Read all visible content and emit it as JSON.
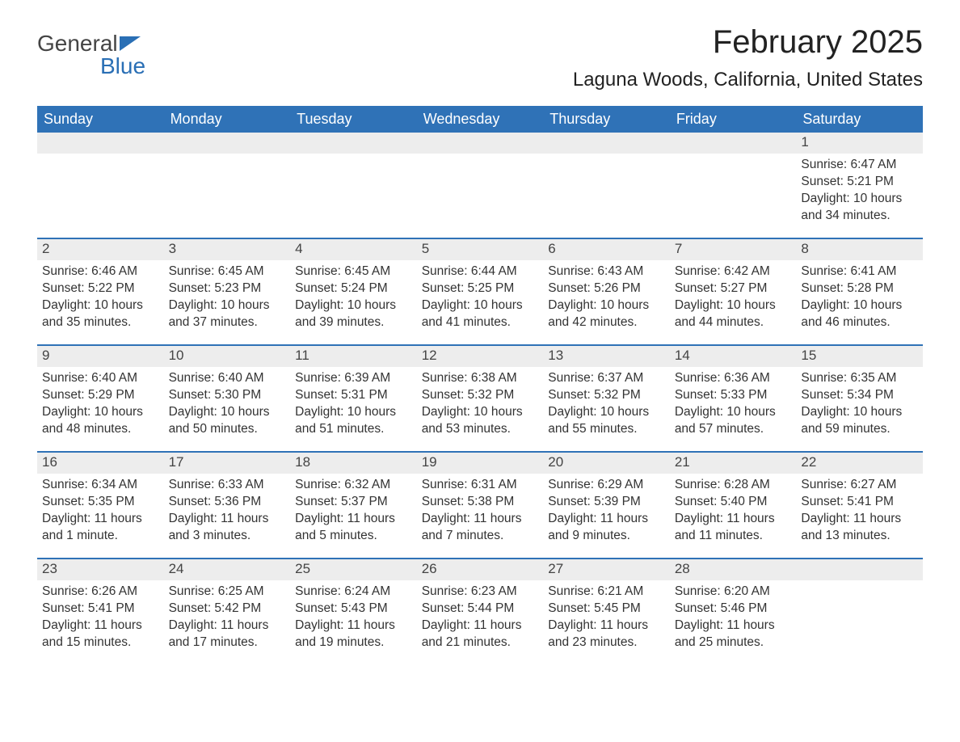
{
  "logo": {
    "word1": "General",
    "word2": "Blue"
  },
  "title": "February 2025",
  "location": "Laguna Woods, California, United States",
  "colors": {
    "header_bg": "#2f72b7",
    "header_text": "#ffffff",
    "daynum_bg": "#ededed",
    "row_border": "#2f72b7",
    "logo_accent": "#2a6fb5"
  },
  "weekday_labels": [
    "Sunday",
    "Monday",
    "Tuesday",
    "Wednesday",
    "Thursday",
    "Friday",
    "Saturday"
  ],
  "weeks": [
    [
      null,
      null,
      null,
      null,
      null,
      null,
      {
        "day": "1",
        "sunrise": "Sunrise: 6:47 AM",
        "sunset": "Sunset: 5:21 PM",
        "daylight": "Daylight: 10 hours and 34 minutes."
      }
    ],
    [
      {
        "day": "2",
        "sunrise": "Sunrise: 6:46 AM",
        "sunset": "Sunset: 5:22 PM",
        "daylight": "Daylight: 10 hours and 35 minutes."
      },
      {
        "day": "3",
        "sunrise": "Sunrise: 6:45 AM",
        "sunset": "Sunset: 5:23 PM",
        "daylight": "Daylight: 10 hours and 37 minutes."
      },
      {
        "day": "4",
        "sunrise": "Sunrise: 6:45 AM",
        "sunset": "Sunset: 5:24 PM",
        "daylight": "Daylight: 10 hours and 39 minutes."
      },
      {
        "day": "5",
        "sunrise": "Sunrise: 6:44 AM",
        "sunset": "Sunset: 5:25 PM",
        "daylight": "Daylight: 10 hours and 41 minutes."
      },
      {
        "day": "6",
        "sunrise": "Sunrise: 6:43 AM",
        "sunset": "Sunset: 5:26 PM",
        "daylight": "Daylight: 10 hours and 42 minutes."
      },
      {
        "day": "7",
        "sunrise": "Sunrise: 6:42 AM",
        "sunset": "Sunset: 5:27 PM",
        "daylight": "Daylight: 10 hours and 44 minutes."
      },
      {
        "day": "8",
        "sunrise": "Sunrise: 6:41 AM",
        "sunset": "Sunset: 5:28 PM",
        "daylight": "Daylight: 10 hours and 46 minutes."
      }
    ],
    [
      {
        "day": "9",
        "sunrise": "Sunrise: 6:40 AM",
        "sunset": "Sunset: 5:29 PM",
        "daylight": "Daylight: 10 hours and 48 minutes."
      },
      {
        "day": "10",
        "sunrise": "Sunrise: 6:40 AM",
        "sunset": "Sunset: 5:30 PM",
        "daylight": "Daylight: 10 hours and 50 minutes."
      },
      {
        "day": "11",
        "sunrise": "Sunrise: 6:39 AM",
        "sunset": "Sunset: 5:31 PM",
        "daylight": "Daylight: 10 hours and 51 minutes."
      },
      {
        "day": "12",
        "sunrise": "Sunrise: 6:38 AM",
        "sunset": "Sunset: 5:32 PM",
        "daylight": "Daylight: 10 hours and 53 minutes."
      },
      {
        "day": "13",
        "sunrise": "Sunrise: 6:37 AM",
        "sunset": "Sunset: 5:32 PM",
        "daylight": "Daylight: 10 hours and 55 minutes."
      },
      {
        "day": "14",
        "sunrise": "Sunrise: 6:36 AM",
        "sunset": "Sunset: 5:33 PM",
        "daylight": "Daylight: 10 hours and 57 minutes."
      },
      {
        "day": "15",
        "sunrise": "Sunrise: 6:35 AM",
        "sunset": "Sunset: 5:34 PM",
        "daylight": "Daylight: 10 hours and 59 minutes."
      }
    ],
    [
      {
        "day": "16",
        "sunrise": "Sunrise: 6:34 AM",
        "sunset": "Sunset: 5:35 PM",
        "daylight": "Daylight: 11 hours and 1 minute."
      },
      {
        "day": "17",
        "sunrise": "Sunrise: 6:33 AM",
        "sunset": "Sunset: 5:36 PM",
        "daylight": "Daylight: 11 hours and 3 minutes."
      },
      {
        "day": "18",
        "sunrise": "Sunrise: 6:32 AM",
        "sunset": "Sunset: 5:37 PM",
        "daylight": "Daylight: 11 hours and 5 minutes."
      },
      {
        "day": "19",
        "sunrise": "Sunrise: 6:31 AM",
        "sunset": "Sunset: 5:38 PM",
        "daylight": "Daylight: 11 hours and 7 minutes."
      },
      {
        "day": "20",
        "sunrise": "Sunrise: 6:29 AM",
        "sunset": "Sunset: 5:39 PM",
        "daylight": "Daylight: 11 hours and 9 minutes."
      },
      {
        "day": "21",
        "sunrise": "Sunrise: 6:28 AM",
        "sunset": "Sunset: 5:40 PM",
        "daylight": "Daylight: 11 hours and 11 minutes."
      },
      {
        "day": "22",
        "sunrise": "Sunrise: 6:27 AM",
        "sunset": "Sunset: 5:41 PM",
        "daylight": "Daylight: 11 hours and 13 minutes."
      }
    ],
    [
      {
        "day": "23",
        "sunrise": "Sunrise: 6:26 AM",
        "sunset": "Sunset: 5:41 PM",
        "daylight": "Daylight: 11 hours and 15 minutes."
      },
      {
        "day": "24",
        "sunrise": "Sunrise: 6:25 AM",
        "sunset": "Sunset: 5:42 PM",
        "daylight": "Daylight: 11 hours and 17 minutes."
      },
      {
        "day": "25",
        "sunrise": "Sunrise: 6:24 AM",
        "sunset": "Sunset: 5:43 PM",
        "daylight": "Daylight: 11 hours and 19 minutes."
      },
      {
        "day": "26",
        "sunrise": "Sunrise: 6:23 AM",
        "sunset": "Sunset: 5:44 PM",
        "daylight": "Daylight: 11 hours and 21 minutes."
      },
      {
        "day": "27",
        "sunrise": "Sunrise: 6:21 AM",
        "sunset": "Sunset: 5:45 PM",
        "daylight": "Daylight: 11 hours and 23 minutes."
      },
      {
        "day": "28",
        "sunrise": "Sunrise: 6:20 AM",
        "sunset": "Sunset: 5:46 PM",
        "daylight": "Daylight: 11 hours and 25 minutes."
      },
      null
    ]
  ]
}
